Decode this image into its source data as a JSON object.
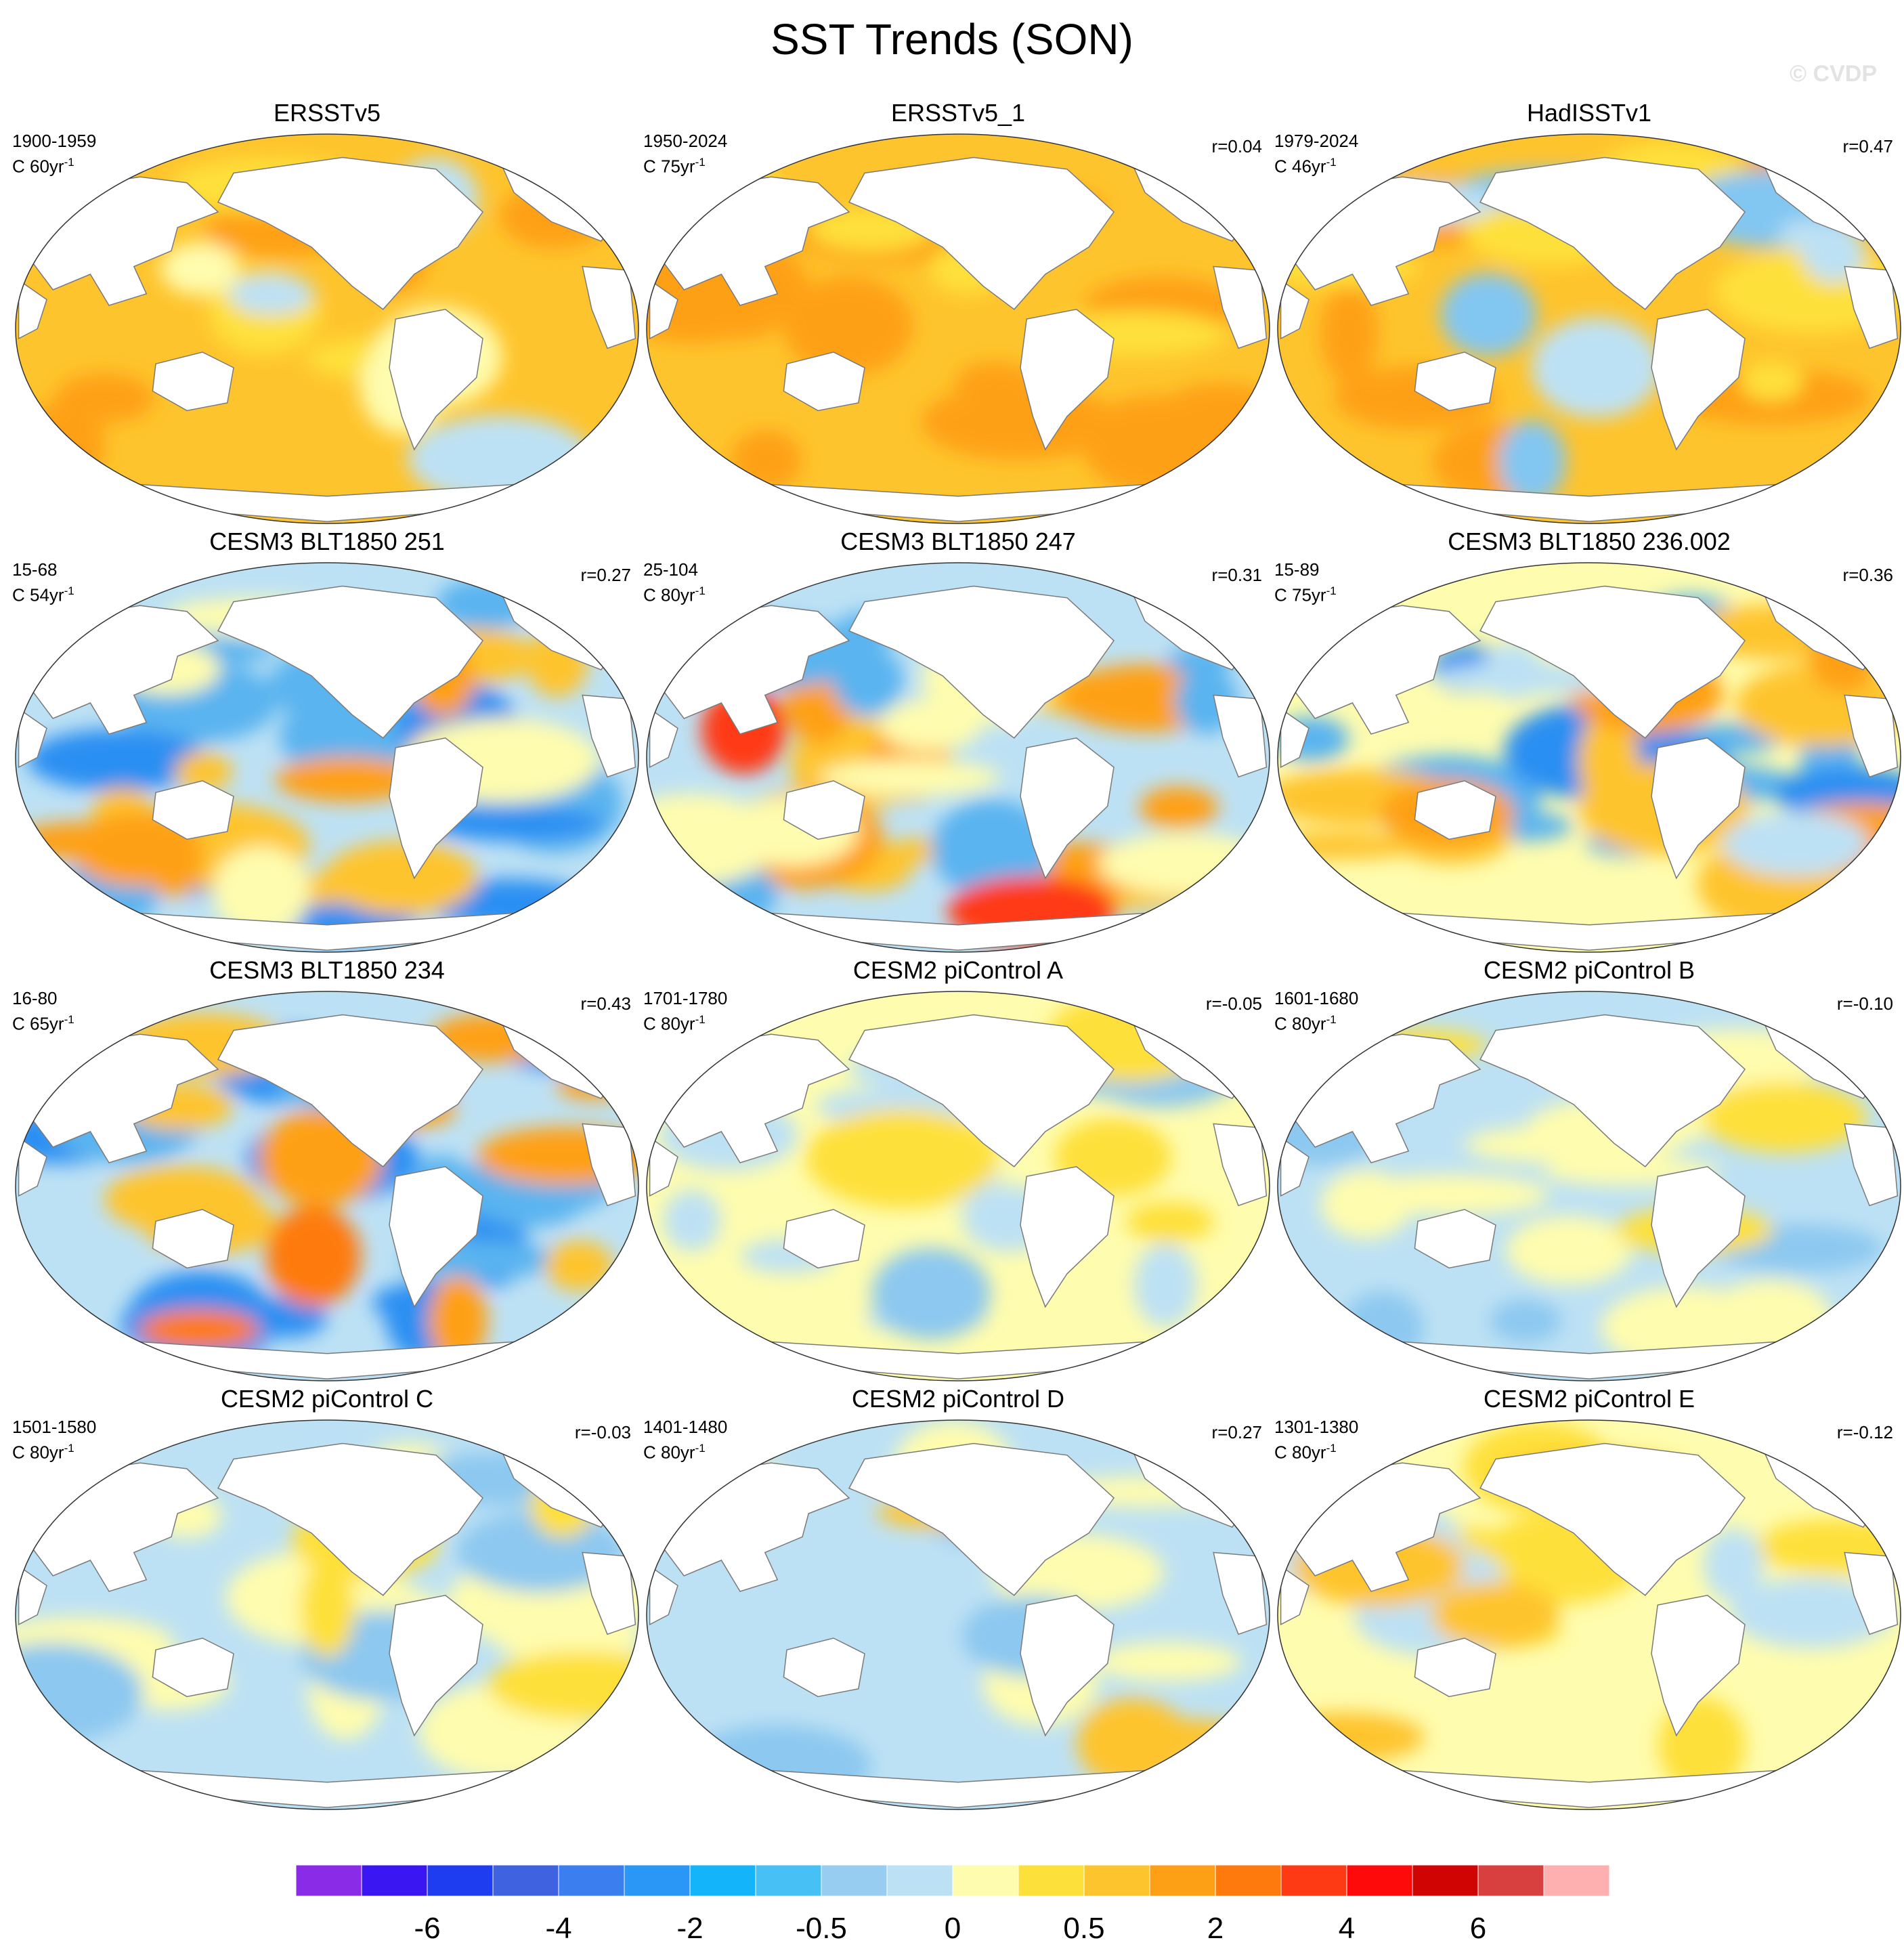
{
  "title": "SST Trends (SON)",
  "watermark": "© CVDP",
  "panels": [
    {
      "name": "ERSSTv5",
      "period": "1900-1959",
      "units_prefix": "C 60yr",
      "units_exp": "-1",
      "r": "",
      "colors": {
        "base": "#fec42d",
        "blobs": [
          [
            "#fea015",
            0.5
          ],
          [
            "#fee03a",
            0.3
          ],
          [
            "#bde1f4",
            0.2
          ],
          [
            "#fefcae",
            0.2
          ]
        ]
      }
    },
    {
      "name": "ERSSTv5_1",
      "period": "1950-2024",
      "units_prefix": "C 75yr",
      "units_exp": "-1",
      "r": "r=0.04",
      "colors": {
        "base": "#fec42d",
        "blobs": [
          [
            "#fea015",
            0.9
          ],
          [
            "#fee03a",
            0.3
          ]
        ]
      }
    },
    {
      "name": "HadISSTv1",
      "period": "1979-2024",
      "units_prefix": "C 46yr",
      "units_exp": "-1",
      "r": "r=0.47",
      "colors": {
        "base": "#fec42d",
        "blobs": [
          [
            "#fea015",
            0.5
          ],
          [
            "#fee03a",
            0.4
          ],
          [
            "#82c6f2",
            0.3
          ],
          [
            "#bde1f4",
            0.3
          ]
        ]
      }
    },
    {
      "name": "CESM3 BLT1850 251",
      "period": "15-68",
      "units_prefix": "C 54yr",
      "units_exp": "-1",
      "r": "r=0.27",
      "colors": {
        "base": "#bde1f4",
        "blobs": [
          [
            "#5ab4f0",
            0.6
          ],
          [
            "#2a8ff2",
            0.4
          ],
          [
            "#fec42d",
            0.5
          ],
          [
            "#fea015",
            0.4
          ],
          [
            "#fefcae",
            0.3
          ]
        ]
      }
    },
    {
      "name": "CESM3 BLT1850 247",
      "period": "25-104",
      "units_prefix": "C 80yr",
      "units_exp": "-1",
      "r": "r=0.31",
      "colors": {
        "base": "#bde1f4",
        "blobs": [
          [
            "#fec42d",
            0.6
          ],
          [
            "#fea015",
            0.4
          ],
          [
            "#5ab4f0",
            0.5
          ],
          [
            "#fefcae",
            0.4
          ],
          [
            "#fe3a14",
            0.08
          ]
        ]
      }
    },
    {
      "name": "CESM3 BLT1850 236.002",
      "period": "15-89",
      "units_prefix": "C 75yr",
      "units_exp": "-1",
      "r": "r=0.36",
      "colors": {
        "base": "#fefcae",
        "blobs": [
          [
            "#5ab4f0",
            0.6
          ],
          [
            "#2a8ff2",
            0.3
          ],
          [
            "#fec42d",
            0.6
          ],
          [
            "#fea015",
            0.3
          ],
          [
            "#bde1f4",
            0.3
          ]
        ]
      }
    },
    {
      "name": "CESM3 BLT1850 234",
      "period": "16-80",
      "units_prefix": "C 65yr",
      "units_exp": "-1",
      "r": "r=0.43",
      "colors": {
        "base": "#bde1f4",
        "blobs": [
          [
            "#2a8ff2",
            0.7
          ],
          [
            "#5ab4f0",
            0.4
          ],
          [
            "#fea015",
            0.4
          ],
          [
            "#fec42d",
            0.4
          ],
          [
            "#fe7a0c",
            0.1
          ]
        ]
      }
    },
    {
      "name": "CESM2 piControl A",
      "period": "1701-1780",
      "units_prefix": "C 80yr",
      "units_exp": "-1",
      "r": "r=-0.05",
      "colors": {
        "base": "#fefcae",
        "blobs": [
          [
            "#bde1f4",
            0.8
          ],
          [
            "#8cc8f0",
            0.2
          ],
          [
            "#fee03a",
            0.3
          ]
        ]
      }
    },
    {
      "name": "CESM2 piControl B",
      "period": "1601-1680",
      "units_prefix": "C 80yr",
      "units_exp": "-1",
      "r": "r=-0.10",
      "colors": {
        "base": "#bde1f4",
        "blobs": [
          [
            "#fefcae",
            0.7
          ],
          [
            "#8cc8f0",
            0.3
          ],
          [
            "#fee03a",
            0.2
          ]
        ]
      }
    },
    {
      "name": "CESM2 piControl C",
      "period": "1501-1580",
      "units_prefix": "C 80yr",
      "units_exp": "-1",
      "r": "r=-0.03",
      "colors": {
        "base": "#bde1f4",
        "blobs": [
          [
            "#fefcae",
            0.7
          ],
          [
            "#8cc8f0",
            0.3
          ],
          [
            "#fee03a",
            0.3
          ]
        ]
      }
    },
    {
      "name": "CESM2 piControl D",
      "period": "1401-1480",
      "units_prefix": "C 80yr",
      "units_exp": "-1",
      "r": "r=0.27",
      "colors": {
        "base": "#bde1f4",
        "blobs": [
          [
            "#fefcae",
            0.6
          ],
          [
            "#8cc8f0",
            0.3
          ],
          [
            "#fec42d",
            0.2
          ]
        ]
      }
    },
    {
      "name": "CESM2 piControl E",
      "period": "1301-1380",
      "units_prefix": "C 80yr",
      "units_exp": "-1",
      "r": "r=-0.12",
      "colors": {
        "base": "#fefcae",
        "blobs": [
          [
            "#fee03a",
            0.6
          ],
          [
            "#bde1f4",
            0.4
          ],
          [
            "#fec42d",
            0.3
          ]
        ]
      }
    }
  ],
  "colorbar": {
    "colors": [
      "#8a2be8",
      "#3a17f2",
      "#1e3cf0",
      "#3f63e0",
      "#3a7ef0",
      "#2a96f5",
      "#14b4fa",
      "#46c0f5",
      "#96cdf0",
      "#bde1f4",
      "#fefcae",
      "#fee03a",
      "#fec42d",
      "#fea015",
      "#fe7a0c",
      "#fe3a14",
      "#fe0a0a",
      "#d10404",
      "#d84040",
      "#feb0b0"
    ],
    "labels": [
      {
        "text": "-6",
        "after_box": 2
      },
      {
        "text": "-4",
        "after_box": 4
      },
      {
        "text": "-2",
        "after_box": 6
      },
      {
        "text": "-0.5",
        "after_box": 8
      },
      {
        "text": "0",
        "after_box": 10
      },
      {
        "text": "0.5",
        "after_box": 12
      },
      {
        "text": "2",
        "after_box": 14
      },
      {
        "text": "4",
        "after_box": 16
      },
      {
        "text": "6",
        "after_box": 18
      }
    ]
  }
}
